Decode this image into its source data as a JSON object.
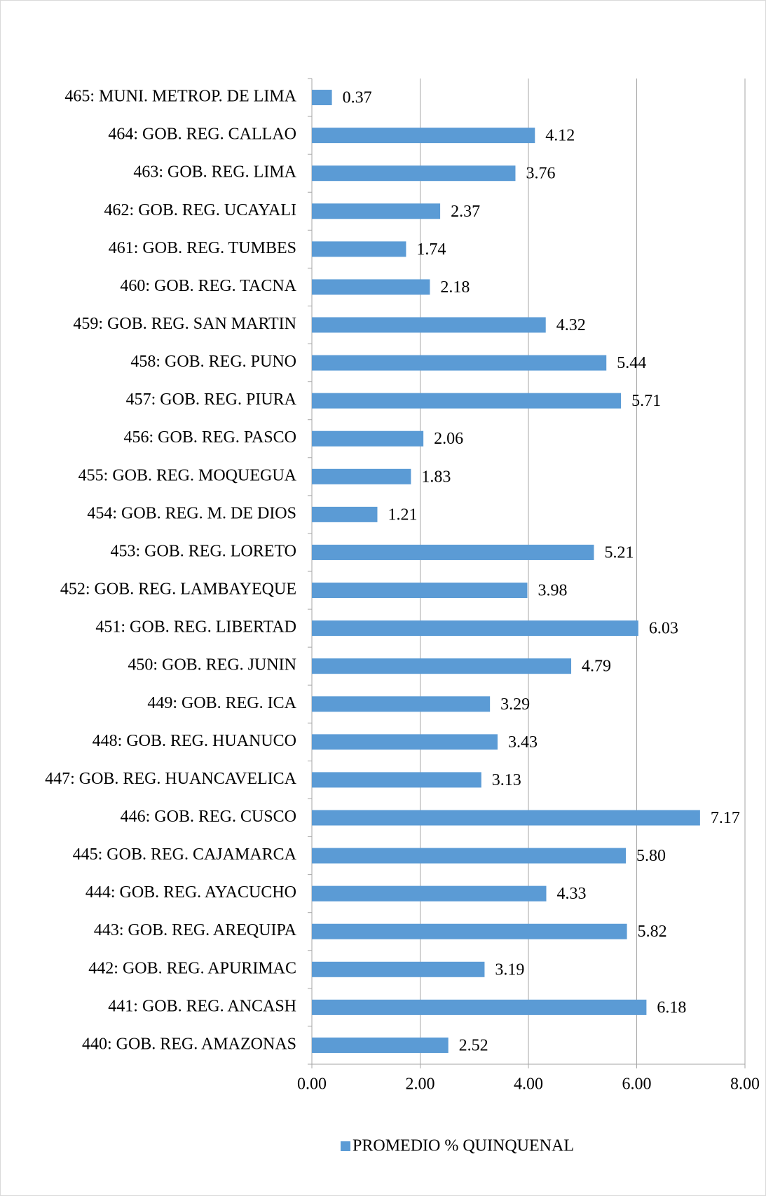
{
  "chart_data": {
    "type": "bar",
    "orientation": "horizontal",
    "categories": [
      "465: MUNI. METROP. DE LIMA",
      "464: GOB. REG. CALLAO",
      "463: GOB. REG. LIMA",
      "462: GOB. REG. UCAYALI",
      "461: GOB. REG. TUMBES",
      "460: GOB. REG. TACNA",
      "459: GOB. REG. SAN MARTIN",
      "458: GOB. REG. PUNO",
      "457: GOB. REG. PIURA",
      "456: GOB. REG. PASCO",
      "455: GOB. REG. MOQUEGUA",
      "454: GOB. REG. M. DE DIOS",
      "453: GOB. REG. LORETO",
      "452: GOB. REG. LAMBAYEQUE",
      "451: GOB. REG. LIBERTAD",
      "450: GOB. REG. JUNIN",
      "449: GOB. REG. ICA",
      "448: GOB. REG. HUANUCO",
      "447: GOB. REG. HUANCAVELICA",
      "446: GOB. REG. CUSCO",
      "445: GOB. REG. CAJAMARCA",
      "444: GOB. REG. AYACUCHO",
      "443: GOB. REG. AREQUIPA",
      "442: GOB. REG. APURIMAC",
      "441: GOB. REG. ANCASH",
      "440: GOB. REG. AMAZONAS"
    ],
    "series": [
      {
        "name": "PROMEDIO % QUINQUENAL",
        "color": "#5b9bd5",
        "values": [
          0.37,
          4.12,
          3.76,
          2.37,
          1.74,
          2.18,
          4.32,
          5.44,
          5.71,
          2.06,
          1.83,
          1.21,
          5.21,
          3.98,
          6.03,
          4.79,
          3.29,
          3.43,
          3.13,
          7.17,
          5.8,
          4.33,
          5.82,
          3.19,
          6.18,
          2.52
        ],
        "value_labels": [
          "0.37",
          "4.12",
          "3.76",
          "2.37",
          "1.74",
          "2.18",
          "4.32",
          "5.44",
          "5.71",
          "2.06",
          "1.83",
          "1.21",
          "5.21",
          "3.98",
          "6.03",
          "4.79",
          "3.29",
          "3.43",
          "3.13",
          "7.17",
          "5.80",
          "4.33",
          "5.82",
          "3.19",
          "6.18",
          "2.52"
        ]
      }
    ],
    "xlim": [
      0,
      8
    ],
    "xticks": [
      {
        "value": 0,
        "label": "0.00"
      },
      {
        "value": 2,
        "label": "2.00"
      },
      {
        "value": 4,
        "label": "4.00"
      },
      {
        "value": 6,
        "label": "6.00"
      },
      {
        "value": 8,
        "label": "8.00"
      }
    ],
    "grid": true,
    "legend": "bottom"
  }
}
